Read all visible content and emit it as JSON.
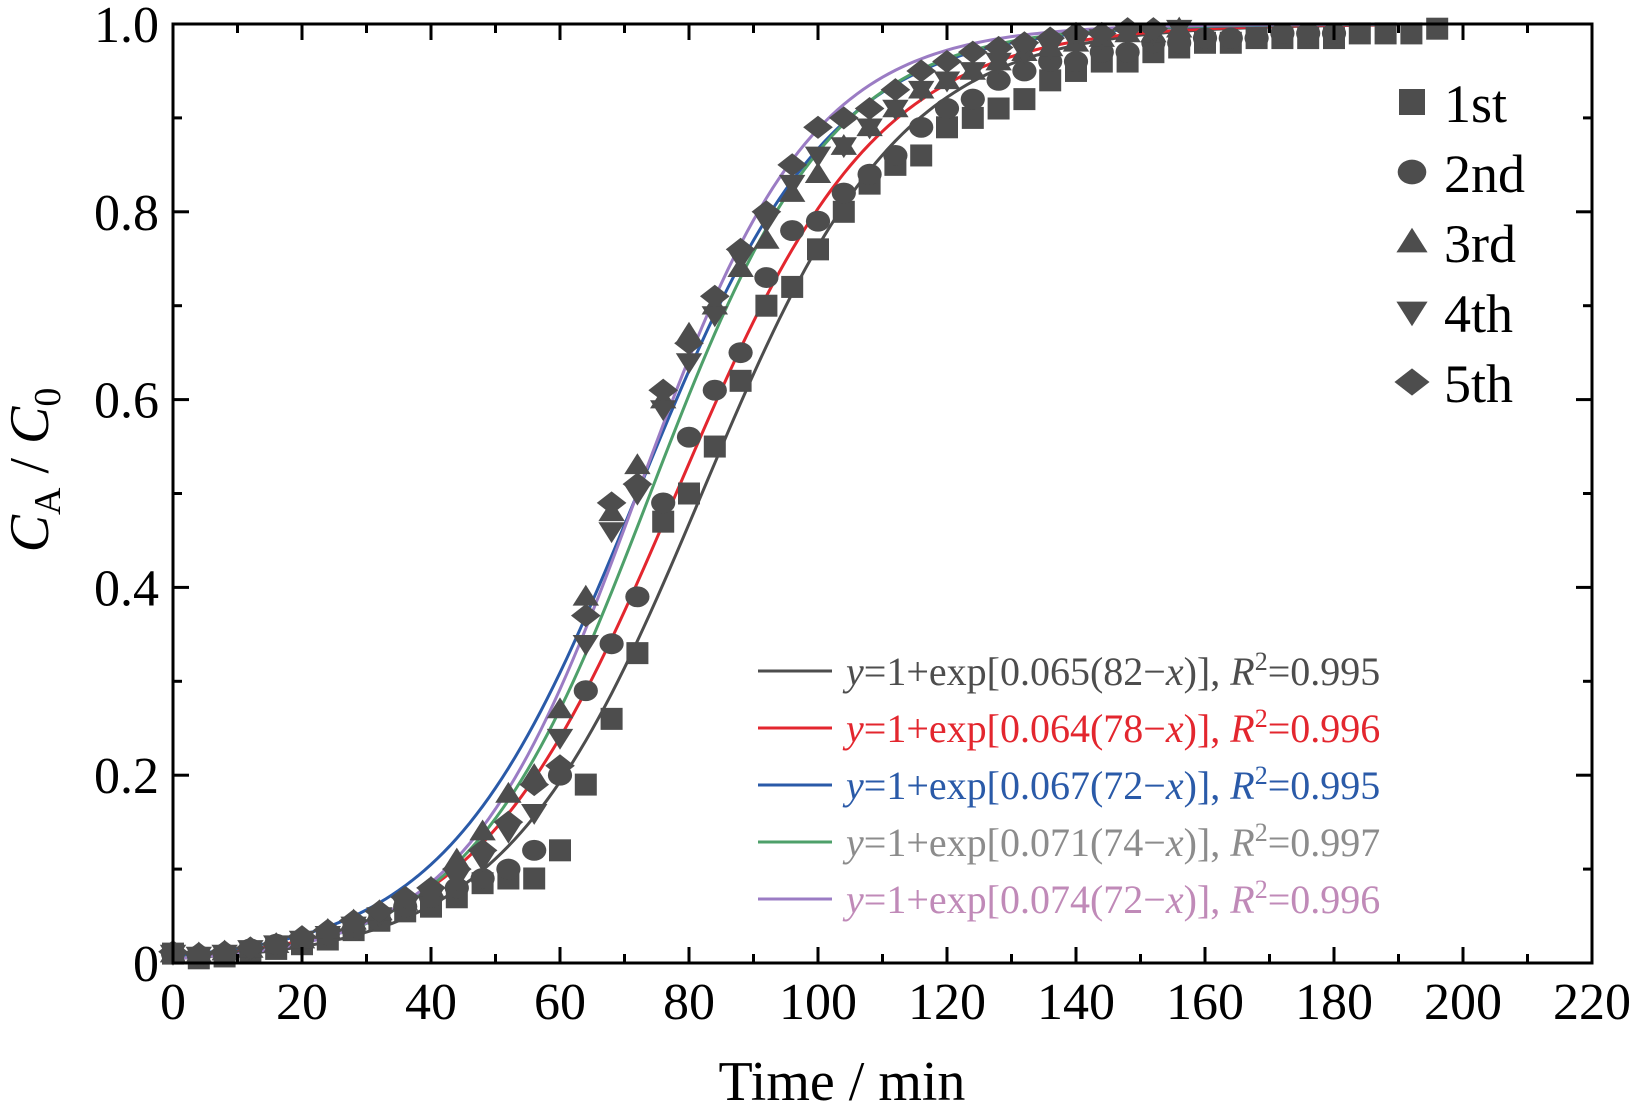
{
  "chart_data": {
    "type": "scatter",
    "xlabel": "Time / min",
    "ylabel": {
      "c": "C",
      "sub_a": "A",
      "sep": " / ",
      "c0": "C",
      "sub_0": "0"
    },
    "xlim": [
      0,
      220
    ],
    "ylim": [
      0,
      1.0
    ],
    "x_ticks": [
      0,
      20,
      40,
      60,
      80,
      100,
      120,
      140,
      160,
      180,
      200,
      220
    ],
    "y_ticks": [
      0,
      0.2,
      0.4,
      0.6,
      0.8,
      1.0
    ],
    "x_tick_labels": [
      "0",
      "20",
      "40",
      "60",
      "80",
      "100",
      "120",
      "140",
      "160",
      "180",
      "200",
      "220"
    ],
    "y_tick_labels": [
      "0",
      "0.2",
      "0.4",
      "0.6",
      "0.8",
      "1.0"
    ],
    "grid": false,
    "legend_position": "top-right",
    "marker_color": "#4d4d4d",
    "series": [
      {
        "name": "1st",
        "marker": "square",
        "x": [
          0,
          4,
          8,
          12,
          16,
          20,
          24,
          28,
          32,
          36,
          40,
          44,
          48,
          52,
          56,
          60,
          64,
          68,
          72,
          76,
          80,
          84,
          88,
          92,
          96,
          100,
          104,
          108,
          112,
          116,
          120,
          124,
          128,
          132,
          136,
          140,
          144,
          148,
          152,
          156,
          160,
          164,
          168,
          172,
          176,
          180,
          184,
          188,
          192,
          196
        ],
        "y": [
          0.01,
          0.005,
          0.007,
          0.012,
          0.015,
          0.02,
          0.025,
          0.035,
          0.045,
          0.055,
          0.06,
          0.07,
          0.085,
          0.09,
          0.09,
          0.12,
          0.19,
          0.26,
          0.33,
          0.47,
          0.5,
          0.55,
          0.62,
          0.7,
          0.72,
          0.76,
          0.8,
          0.83,
          0.85,
          0.86,
          0.89,
          0.9,
          0.91,
          0.92,
          0.94,
          0.95,
          0.96,
          0.96,
          0.97,
          0.975,
          0.98,
          0.98,
          0.985,
          0.985,
          0.985,
          0.985,
          0.99,
          0.99,
          0.99,
          0.995
        ]
      },
      {
        "name": "2nd",
        "marker": "circle",
        "x": [
          0,
          4,
          8,
          12,
          16,
          20,
          24,
          28,
          32,
          36,
          40,
          44,
          48,
          52,
          56,
          60,
          64,
          68,
          72,
          76,
          80,
          84,
          88,
          92,
          96,
          100,
          104,
          108,
          112,
          116,
          120,
          124,
          128,
          132,
          136,
          140,
          144,
          148,
          152,
          156,
          160,
          164,
          168,
          172,
          176,
          180
        ],
        "y": [
          0.01,
          0.008,
          0.01,
          0.015,
          0.02,
          0.025,
          0.03,
          0.035,
          0.045,
          0.06,
          0.07,
          0.08,
          0.09,
          0.1,
          0.12,
          0.2,
          0.29,
          0.34,
          0.39,
          0.49,
          0.56,
          0.61,
          0.65,
          0.73,
          0.78,
          0.79,
          0.82,
          0.84,
          0.86,
          0.89,
          0.91,
          0.92,
          0.94,
          0.95,
          0.96,
          0.96,
          0.97,
          0.97,
          0.98,
          0.98,
          0.985,
          0.985,
          0.985,
          0.99,
          0.99,
          0.99
        ]
      },
      {
        "name": "3rd",
        "marker": "triangle-up",
        "x": [
          0,
          4,
          8,
          12,
          16,
          20,
          24,
          28,
          32,
          36,
          40,
          44,
          48,
          52,
          56,
          60,
          64,
          68,
          72,
          76,
          80,
          84,
          88,
          92,
          96,
          100,
          104,
          108,
          112,
          116,
          120,
          124,
          128,
          132,
          136,
          140,
          144,
          148,
          152,
          156
        ],
        "y": [
          0.01,
          0.01,
          0.012,
          0.015,
          0.02,
          0.025,
          0.035,
          0.045,
          0.055,
          0.065,
          0.08,
          0.11,
          0.14,
          0.18,
          0.2,
          0.27,
          0.39,
          0.48,
          0.53,
          0.6,
          0.67,
          0.7,
          0.74,
          0.77,
          0.82,
          0.84,
          0.87,
          0.89,
          0.91,
          0.93,
          0.94,
          0.95,
          0.96,
          0.97,
          0.975,
          0.98,
          0.985,
          0.99,
          0.99,
          0.995
        ]
      },
      {
        "name": "4th",
        "marker": "triangle-down",
        "x": [
          0,
          4,
          8,
          12,
          16,
          20,
          24,
          28,
          32,
          36,
          40,
          44,
          48,
          52,
          56,
          60,
          64,
          68,
          72,
          76,
          80,
          84,
          88,
          92,
          96,
          100,
          104,
          108,
          112,
          116,
          120,
          124,
          128,
          132,
          136,
          140,
          144,
          148,
          152,
          156
        ],
        "y": [
          0.01,
          0.008,
          0.01,
          0.015,
          0.02,
          0.025,
          0.03,
          0.04,
          0.05,
          0.06,
          0.07,
          0.09,
          0.11,
          0.14,
          0.16,
          0.24,
          0.34,
          0.46,
          0.5,
          0.59,
          0.64,
          0.69,
          0.75,
          0.79,
          0.83,
          0.86,
          0.87,
          0.89,
          0.91,
          0.93,
          0.94,
          0.95,
          0.96,
          0.97,
          0.975,
          0.98,
          0.985,
          0.99,
          0.99,
          0.995
        ]
      },
      {
        "name": "5th",
        "marker": "diamond",
        "x": [
          0,
          4,
          8,
          12,
          16,
          20,
          24,
          28,
          32,
          36,
          40,
          44,
          48,
          52,
          56,
          60,
          64,
          68,
          72,
          76,
          80,
          84,
          88,
          92,
          96,
          100,
          104,
          108,
          112,
          116,
          120,
          124,
          128,
          132,
          136,
          140,
          144,
          148,
          152
        ],
        "y": [
          0.012,
          0.01,
          0.012,
          0.016,
          0.02,
          0.028,
          0.035,
          0.045,
          0.055,
          0.07,
          0.08,
          0.1,
          0.12,
          0.15,
          0.19,
          0.21,
          0.37,
          0.49,
          0.51,
          0.61,
          0.66,
          0.71,
          0.76,
          0.8,
          0.85,
          0.89,
          0.9,
          0.91,
          0.93,
          0.95,
          0.96,
          0.97,
          0.975,
          0.98,
          0.985,
          0.99,
          0.99,
          0.995,
          0.995
        ]
      }
    ],
    "fits": [
      {
        "k": 0.065,
        "x0": 82,
        "color": "#4d4d4d",
        "y": "y",
        "eq": "=1+exp[0.065(82−",
        "x": "x",
        "close": ")], ",
        "r": "R",
        "sup": "2",
        "val": "=0.995"
      },
      {
        "k": 0.064,
        "x0": 78,
        "color": "#e3262e",
        "y": "y",
        "eq": "=1+exp[0.064(78−",
        "x": "x",
        "close": ")], ",
        "r": "R",
        "sup": "2",
        "val": "=0.996"
      },
      {
        "k": 0.067,
        "x0": 72,
        "color": "#2a5aa8",
        "y": "y",
        "eq": "=1+exp[0.067(72−",
        "x": "x",
        "close": ")], ",
        "r": "R",
        "sup": "2",
        "val": "=0.995"
      },
      {
        "k": 0.071,
        "x0": 74,
        "color": "#4ea06a",
        "text_color": "#8c8c8c",
        "y": "y",
        "eq": "=1+exp[0.071(74−",
        "x": "x",
        "close": ")], ",
        "r": "R",
        "sup": "2",
        "val": "=0.997"
      },
      {
        "k": 0.074,
        "x0": 72,
        "color": "#9b7cc4",
        "text_color": "#c08ab8",
        "y": "y",
        "eq": "=1+exp[0.074(72−",
        "x": "x",
        "close": ")], ",
        "r": "R",
        "sup": "2",
        "val": "=0.996"
      }
    ]
  }
}
